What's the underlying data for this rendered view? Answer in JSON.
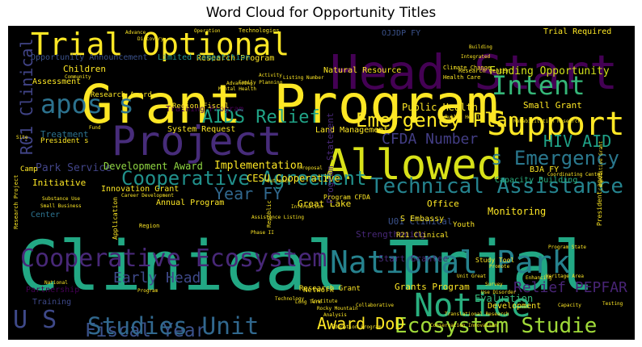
{
  "chart_data": {
    "type": "wordcloud",
    "title": "Word Cloud for Opportunity Titles",
    "background": "#000000",
    "colormap": "viridis",
    "words": [
      {
        "text": "Clinical Trial",
        "weight": 1.0,
        "color": "#22a884"
      },
      {
        "text": "Grant Program",
        "weight": 0.72,
        "color": "#fde725"
      },
      {
        "text": "Head Start",
        "weight": 0.7,
        "color": "#440154"
      },
      {
        "text": "Fiscal Year",
        "weight": 0.62,
        "color": "#3b528b"
      },
      {
        "text": "Allowed",
        "weight": 0.58,
        "color": "#d8e219"
      },
      {
        "text": "Project",
        "weight": 0.56,
        "color": "#472c7a"
      },
      {
        "text": "Trial Optional",
        "weight": 0.46,
        "color": "#fde725"
      },
      {
        "text": "Support",
        "weight": 0.44,
        "color": "#fde725"
      },
      {
        "text": "National Park",
        "weight": 0.42,
        "color": "#26828e"
      },
      {
        "text": "Notice",
        "weight": 0.4,
        "color": "#29af7f"
      },
      {
        "text": "Intent",
        "weight": 0.38,
        "color": "#35b779"
      },
      {
        "text": "apos s",
        "weight": 0.36,
        "color": "#2c728e"
      },
      {
        "text": "Studies Unit",
        "weight": 0.34,
        "color": "#31688e"
      },
      {
        "text": "Cooperative Ecosystem",
        "weight": 0.33,
        "color": "#482878"
      },
      {
        "text": "U S",
        "weight": 0.32,
        "color": "#3e4989"
      },
      {
        "text": "Technical Assistance",
        "weight": 0.3,
        "color": "#25838e"
      },
      {
        "text": "Cooperative Agreement",
        "weight": 0.29,
        "color": "#21918c"
      },
      {
        "text": "Emergency Plan",
        "weight": 0.28,
        "color": "#fde725"
      },
      {
        "text": "AIDS Relief",
        "weight": 0.27,
        "color": "#20a386"
      },
      {
        "text": "s Emergency",
        "weight": 0.26,
        "color": "#2a788e"
      },
      {
        "text": "Ecosystem Studie",
        "weight": 0.26,
        "color": "#a0da39"
      },
      {
        "text": "HIV AID",
        "weight": 0.24,
        "color": "#1fa187"
      },
      {
        "text": "Year FY",
        "weight": 0.22,
        "color": "#31688e"
      },
      {
        "text": "CFDA Number",
        "weight": 0.22,
        "color": "#433e85"
      },
      {
        "text": "R01 Clinical",
        "weight": 0.21,
        "color": "#414487"
      },
      {
        "text": "Award DoD",
        "weight": 0.2,
        "color": "#fde725"
      },
      {
        "text": "Early Head",
        "weight": 0.19,
        "color": "#3e4989"
      },
      {
        "text": "Relief PEPFAR",
        "weight": 0.19,
        "color": "#482475"
      },
      {
        "text": "Public Health",
        "weight": 0.14,
        "color": "#fde725"
      },
      {
        "text": "Funding Opportunity",
        "weight": 0.14,
        "color": "#d2e21b"
      },
      {
        "text": "Park Service",
        "weight": 0.13,
        "color": "#414487"
      },
      {
        "text": "Implementation",
        "weight": 0.13,
        "color": "#fde725"
      },
      {
        "text": "CESU Cooperative",
        "weight": 0.12,
        "color": "#fde725"
      },
      {
        "text": "Development Award",
        "weight": 0.12,
        "color": "#90d743"
      },
      {
        "text": "Grants Program",
        "weight": 0.12,
        "color": "#fde725"
      },
      {
        "text": "Start Grantee",
        "weight": 0.12,
        "color": "#472c7a"
      },
      {
        "text": "Strengthening",
        "weight": 0.11,
        "color": "#482878"
      },
      {
        "text": "U01 Clinical",
        "weight": 0.11,
        "color": "#3b528b"
      },
      {
        "text": "Training Program",
        "weight": 0.11,
        "color": "#440154"
      },
      {
        "text": "Small Grant",
        "weight": 0.1,
        "color": "#fde725"
      },
      {
        "text": "Evaluation",
        "weight": 0.1,
        "color": "#35b779"
      },
      {
        "text": "Research Program",
        "weight": 0.1,
        "color": "#fde725"
      },
      {
        "text": "Natural Resource",
        "weight": 0.1,
        "color": "#fde725"
      },
      {
        "text": "Office",
        "weight": 0.09,
        "color": "#fde725"
      },
      {
        "text": "Great Lake",
        "weight": 0.09,
        "color": "#fde725"
      },
      {
        "text": "Land Management",
        "weight": 0.09,
        "color": "#fde725"
      },
      {
        "text": "Capacity Building",
        "weight": 0.09,
        "color": "#29af7f"
      },
      {
        "text": "BJA FY",
        "weight": 0.09,
        "color": "#fde725"
      },
      {
        "text": "Children",
        "weight": 0.09,
        "color": "#fde725"
      },
      {
        "text": "Initiative",
        "weight": 0.09,
        "color": "#fde725"
      },
      {
        "text": "Monitoring",
        "weight": 0.09,
        "color": "#fde725"
      },
      {
        "text": "Treatment",
        "weight": 0.09,
        "color": "#2c728e"
      },
      {
        "text": "Assessment",
        "weight": 0.09,
        "color": "#fde725"
      },
      {
        "text": "System Request",
        "weight": 0.08,
        "color": "#fde725"
      },
      {
        "text": "Innovation Grant",
        "weight": 0.08,
        "color": "#fde725"
      },
      {
        "text": "Annual Program",
        "weight": 0.08,
        "color": "#fde725"
      },
      {
        "text": "Development",
        "weight": 0.08,
        "color": "#fde725"
      },
      {
        "text": "Research Award",
        "weight": 0.08,
        "color": "#fde725"
      },
      {
        "text": "Region Fiscal",
        "weight": 0.08,
        "color": "#fde725"
      },
      {
        "text": "Limited Competition",
        "weight": 0.08,
        "color": "#21918c"
      },
      {
        "text": "Opportunity Announcement",
        "weight": 0.08,
        "color": "#3b528b"
      },
      {
        "text": "Program Statement",
        "weight": 0.08,
        "color": "#482878"
      },
      {
        "text": "Partnership",
        "weight": 0.08,
        "color": "#440154"
      },
      {
        "text": "Training",
        "weight": 0.08,
        "color": "#3e4989"
      },
      {
        "text": "Center",
        "weight": 0.08,
        "color": "#2c728e"
      },
      {
        "text": "Research Grant",
        "weight": 0.08,
        "color": "#fde725"
      },
      {
        "text": "Program CFDA",
        "weight": 0.07,
        "color": "#fde725"
      },
      {
        "text": "President apos",
        "weight": 0.07,
        "color": "#fde725"
      },
      {
        "text": "President s",
        "weight": 0.07,
        "color": "#fde725"
      },
      {
        "text": "OJJDP FY",
        "weight": 0.07,
        "color": "#3b528b"
      },
      {
        "text": "Trial Required",
        "weight": 0.07,
        "color": "#fde725"
      },
      {
        "text": "S Embassy",
        "weight": 0.07,
        "color": "#fde725"
      },
      {
        "text": "R21 Clinical",
        "weight": 0.06,
        "color": "#fde725"
      },
      {
        "text": "Study Tool",
        "weight": 0.06,
        "color": "#fde725"
      },
      {
        "text": "Youth",
        "weight": 0.06,
        "color": "#fde725"
      },
      {
        "text": "Network",
        "weight": 0.06,
        "color": "#fde725"
      },
      {
        "text": "Research Project",
        "weight": 0.05,
        "color": "#fde725"
      },
      {
        "text": "Region",
        "weight": 0.05,
        "color": "#fde725"
      },
      {
        "text": "Advancing",
        "weight": 0.05,
        "color": "#fde725"
      },
      {
        "text": "Technologies",
        "weight": 0.05,
        "color": "#fde725"
      },
      {
        "text": "Climate Change",
        "weight": 0.05,
        "color": "#fde725"
      },
      {
        "text": "Health Care",
        "weight": 0.05,
        "color": "#fde725"
      },
      {
        "text": "Research Center",
        "weight": 0.05,
        "color": "#fde725"
      },
      {
        "text": "Rehabilitation Research",
        "weight": 0.05,
        "color": "#fde725"
      },
      {
        "text": "Coordinating Center",
        "weight": 0.05,
        "color": "#fde725"
      },
      {
        "text": "Competitive Grant",
        "weight": 0.05,
        "color": "#fde725"
      },
      {
        "text": "Program State",
        "weight": 0.05,
        "color": "#fde725"
      },
      {
        "text": "Translational Research",
        "weight": 0.05,
        "color": "#fde725"
      },
      {
        "text": "Conservation Innovation",
        "weight": 0.05,
        "color": "#fde725"
      },
      {
        "text": "Education Program",
        "weight": 0.05,
        "color": "#fde725"
      },
      {
        "text": "Rocky Mountain",
        "weight": 0.05,
        "color": "#fde725"
      },
      {
        "text": "Assistance Listing",
        "weight": 0.04,
        "color": "#fde725"
      },
      {
        "text": "Career Development",
        "weight": 0.04,
        "color": "#fde725"
      },
      {
        "text": "Small Business",
        "weight": 0.04,
        "color": "#fde725"
      },
      {
        "text": "Substance Use",
        "weight": 0.04,
        "color": "#fde725"
      },
      {
        "text": "Community",
        "weight": 0.04,
        "color": "#fde725"
      },
      {
        "text": "Family Planning",
        "weight": 0.04,
        "color": "#fde725"
      },
      {
        "text": "Mental Health",
        "weight": 0.04,
        "color": "#fde725"
      },
      {
        "text": "Public Health",
        "weight": 0.04,
        "color": "#fde725"
      },
      {
        "text": "Information",
        "weight": 0.04,
        "color": "#fde725"
      },
      {
        "text": "Listing Number",
        "weight": 0.04,
        "color": "#fde725"
      },
      {
        "text": "Activity",
        "weight": 0.04,
        "color": "#fde725"
      },
      {
        "text": "Unit Great",
        "weight": 0.04,
        "color": "#fde725"
      },
      {
        "text": "Phase II",
        "weight": 0.04,
        "color": "#fde725"
      },
      {
        "text": "Institute",
        "weight": 0.04,
        "color": "#fde725"
      },
      {
        "text": "Analysis",
        "weight": 0.04,
        "color": "#fde725"
      },
      {
        "text": "Capacity",
        "weight": 0.04,
        "color": "#fde725"
      },
      {
        "text": "Testing",
        "weight": 0.04,
        "color": "#fde725"
      },
      {
        "text": "Enhancing",
        "weight": 0.04,
        "color": "#fde725"
      },
      {
        "text": "Promote",
        "weight": 0.04,
        "color": "#fde725"
      },
      {
        "text": "Heritage Area",
        "weight": 0.04,
        "color": "#fde725"
      },
      {
        "text": "Survey",
        "weight": 0.04,
        "color": "#fde725"
      },
      {
        "text": "Technology",
        "weight": 0.04,
        "color": "#fde725"
      },
      {
        "text": "Republic",
        "weight": 0.04,
        "color": "#fde725"
      },
      {
        "text": "Collaborative",
        "weight": 0.04,
        "color": "#fde725"
      },
      {
        "text": "Fund",
        "weight": 0.04,
        "color": "#fde725"
      },
      {
        "text": "Site",
        "weight": 0.04,
        "color": "#fde725"
      },
      {
        "text": "Camp",
        "weight": 0.04,
        "color": "#fde725"
      },
      {
        "text": "Building",
        "weight": 0.04,
        "color": "#fde725"
      },
      {
        "text": "Integrated",
        "weight": 0.04,
        "color": "#fde725"
      },
      {
        "text": "Advance",
        "weight": 0.04,
        "color": "#fde725"
      },
      {
        "text": "Discovery",
        "weight": 0.04,
        "color": "#fde725"
      },
      {
        "text": "Operation",
        "weight": 0.04,
        "color": "#fde725"
      },
      {
        "text": "Proposal",
        "weight": 0.04,
        "color": "#fde725"
      },
      {
        "text": "Outreach",
        "weight": 0.04,
        "color": "#fde725"
      },
      {
        "text": "Long Term",
        "weight": 0.04,
        "color": "#fde725"
      },
      {
        "text": "Use Disorder",
        "weight": 0.04,
        "color": "#fde725"
      },
      {
        "text": "Application",
        "weight": 0.04,
        "color": "#fde725"
      },
      {
        "text": "National",
        "weight": 0.04,
        "color": "#fde725"
      },
      {
        "text": "Program",
        "weight": 0.04,
        "color": "#fde725"
      }
    ]
  }
}
